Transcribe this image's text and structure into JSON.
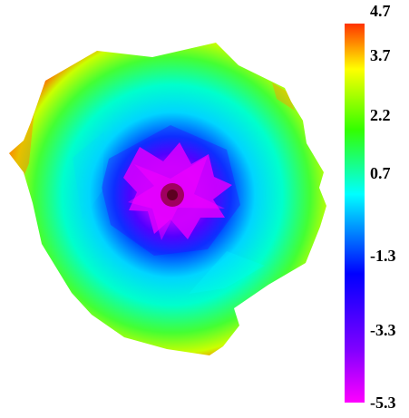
{
  "chart_data": {
    "type": "heatmap",
    "title": "",
    "colorbar": {
      "min": -5.3,
      "max": 4.7,
      "tick_labels": [
        "4.7",
        "3.7",
        "2.2",
        "0.7",
        "-1.3",
        "-3.3",
        "-5.3"
      ],
      "tick_values": [
        4.7,
        3.7,
        2.2,
        0.7,
        -1.3,
        -3.3,
        -5.3
      ],
      "colors": [
        "#ff3300",
        "#ffff00",
        "#33ff00",
        "#00ffff",
        "#0000ff",
        "#cc00ff",
        "#ff00ff"
      ],
      "placement": "right"
    },
    "field": {
      "shape": "irregular rounded region",
      "center_value": -5.3,
      "edge_value": 4.0
    }
  }
}
